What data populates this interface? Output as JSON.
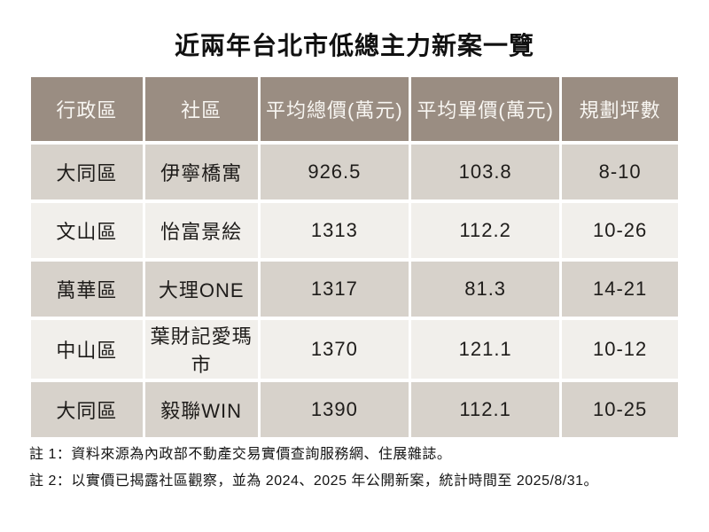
{
  "page": {
    "title": "近兩年台北市低總主力新案一覽"
  },
  "colors": {
    "header_bg": "#9a8d82",
    "header_text": "#f8f6f2",
    "row_odd_bg": "#d7d2cb",
    "row_even_bg": "#f1efeb",
    "body_text": "#1e1c1a",
    "page_bg": "#ffffff"
  },
  "table": {
    "headers": [
      "行政區",
      "社區",
      "平均總價(萬元)",
      "平均單價(萬元)",
      "規劃坪數"
    ],
    "rows": [
      [
        "大同區",
        "伊寧橋寓",
        "926.5",
        "103.8",
        "8-10"
      ],
      [
        "文山區",
        "怡富景絵",
        "1313",
        "112.2",
        "10-26"
      ],
      [
        "萬華區",
        "大理ONE",
        "1317",
        "81.3",
        "14-21"
      ],
      [
        "中山區",
        "葉財記愛瑪市",
        "1370",
        "121.1",
        "10-12"
      ],
      [
        "大同區",
        "毅聯WIN",
        "1390",
        "112.1",
        "10-25"
      ]
    ]
  },
  "notes": [
    "註 1：資料來源為內政部不動產交易實價查詢服務網、住展雜誌。",
    "註 2：以實價已揭露社區觀察，並為 2024、2025 年公開新案，統計時間至 2025/8/31。"
  ],
  "chart_data": {
    "type": "table",
    "title": "近兩年台北市低總主力新案一覽",
    "columns": [
      "行政區",
      "社區",
      "平均總價(萬元)",
      "平均單價(萬元)",
      "規劃坪數"
    ],
    "rows": [
      {
        "行政區": "大同區",
        "社區": "伊寧橋寓",
        "平均總價(萬元)": 926.5,
        "平均單價(萬元)": 103.8,
        "規劃坪數": "8-10"
      },
      {
        "行政區": "文山區",
        "社區": "怡富景絵",
        "平均總價(萬元)": 1313,
        "平均單價(萬元)": 112.2,
        "規劃坪數": "10-26"
      },
      {
        "行政區": "萬華區",
        "社區": "大理ONE",
        "平均總價(萬元)": 1317,
        "平均單價(萬元)": 81.3,
        "規劃坪數": "14-21"
      },
      {
        "行政區": "中山區",
        "社區": "葉財記愛瑪市",
        "平均總價(萬元)": 1370,
        "平均單價(萬元)": 121.1,
        "規劃坪數": "10-12"
      },
      {
        "行政區": "大同區",
        "社區": "毅聯WIN",
        "平均總價(萬元)": 1390,
        "平均單價(萬元)": 112.1,
        "規劃坪數": "10-25"
      }
    ],
    "footnotes": [
      "註 1：資料來源為內政部不動產交易實價查詢服務網、住展雜誌。",
      "註 2：以實價已揭露社區觀察，並為 2024、2025 年公開新案，統計時間至 2025/8/31。"
    ]
  }
}
